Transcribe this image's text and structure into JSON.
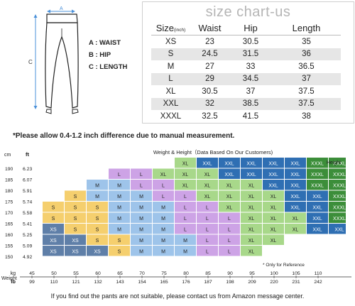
{
  "figure_labels": {
    "a": "A : WAIST",
    "b": "B : HIP",
    "c": "C : LENGTH",
    "a_mark": "A",
    "b_mark": "B",
    "c_mark": "C"
  },
  "size_chart": {
    "title": "size chart-us",
    "headers": {
      "size": "Size",
      "size_unit": "(inch)",
      "waist": "Waist",
      "hip": "Hip",
      "length": "Length"
    },
    "rows": [
      [
        "XS",
        "23",
        "30.5",
        "35"
      ],
      [
        "S",
        "24.5",
        "31.5",
        "36"
      ],
      [
        "M",
        "27",
        "33",
        "36.5"
      ],
      [
        "L",
        "29",
        "34.5",
        "37"
      ],
      [
        "XL",
        "30.5",
        "37",
        "37.5"
      ],
      [
        "XXL",
        "32",
        "38.5",
        "37.5"
      ],
      [
        "XXXL",
        "32.5",
        "41.5",
        "38"
      ]
    ]
  },
  "note": "*Please allow 0.4-1.2 inch difference due to manual measurement.",
  "height_chart": {
    "legend": "Weight & Height（Data Based On Our Customers)",
    "height_label": "Height",
    "cm_label": "cm",
    "ft_label": "ft",
    "kg_label": "kg",
    "lb_label": "lb",
    "weight_label": "Weight",
    "reference": "* Only for Reference",
    "heights_cm": [
      "190",
      "185",
      "180",
      "175",
      "170",
      "165",
      "160",
      "155",
      "150"
    ],
    "heights_ft": [
      "6.23",
      "6.07",
      "5.91",
      "5.74",
      "5.58",
      "5.41",
      "5.25",
      "5.09",
      "4.92"
    ],
    "weights_kg": [
      "45",
      "50",
      "55",
      "60",
      "65",
      "70",
      "75",
      "80",
      "85",
      "90",
      "95",
      "100",
      "105",
      "110"
    ],
    "weights_lb": [
      "99",
      "110",
      "121",
      "132",
      "143",
      "154",
      "165",
      "176",
      "187",
      "198",
      "209",
      "220",
      "231",
      "242"
    ],
    "colors": {
      "S": "#f5cf6e",
      "XS": "#5f7fa8",
      "M": "#9ec4ea",
      "L": "#cda3e6",
      "XL": "#a8d88a",
      "XXL": "#2f6fb3",
      "XXXL": "#3c8e3a"
    },
    "rows": [
      [
        "",
        "",
        "",
        "",
        "",
        "",
        "XL",
        "XXL",
        "XXL",
        "XXL",
        "XXL",
        "XXL",
        "XXXL",
        "XXXL"
      ],
      [
        "",
        "",
        "",
        "L",
        "L",
        "XL",
        "XL",
        "XL",
        "XXL",
        "XXL",
        "XXL",
        "XXL",
        "XXXL",
        "XXXL"
      ],
      [
        "",
        "",
        "M",
        "M",
        "L",
        "L",
        "XL",
        "XL",
        "XL",
        "XL",
        "XXL",
        "XXL",
        "XXXL",
        "XXXL"
      ],
      [
        "",
        "S",
        "M",
        "M",
        "M",
        "L",
        "L",
        "XL",
        "XL",
        "XL",
        "XL",
        "XXL",
        "XXL",
        "XXXL"
      ],
      [
        "S",
        "S",
        "S",
        "M",
        "M",
        "M",
        "L",
        "L",
        "XL",
        "XL",
        "XL",
        "XXL",
        "XXL",
        "XXXL"
      ],
      [
        "S",
        "S",
        "S",
        "M",
        "M",
        "M",
        "L",
        "L",
        "L",
        "XL",
        "XL",
        "XL",
        "XXL",
        "XXXL"
      ],
      [
        "XS",
        "S",
        "S",
        "M",
        "M",
        "M",
        "L",
        "L",
        "L",
        "XL",
        "XL",
        "XL",
        "XXL",
        "XXL"
      ],
      [
        "XS",
        "XS",
        "S",
        "S",
        "M",
        "M",
        "M",
        "L",
        "L",
        "XL",
        "XL",
        "",
        "",
        ""
      ],
      [
        "XS",
        "XS",
        "XS",
        "S",
        "M",
        "M",
        "M",
        "L",
        "L",
        "XL",
        "",
        "",
        "",
        ""
      ]
    ]
  },
  "footer": "If you find out the pants are not suitable, please contact us from Amazon message center."
}
